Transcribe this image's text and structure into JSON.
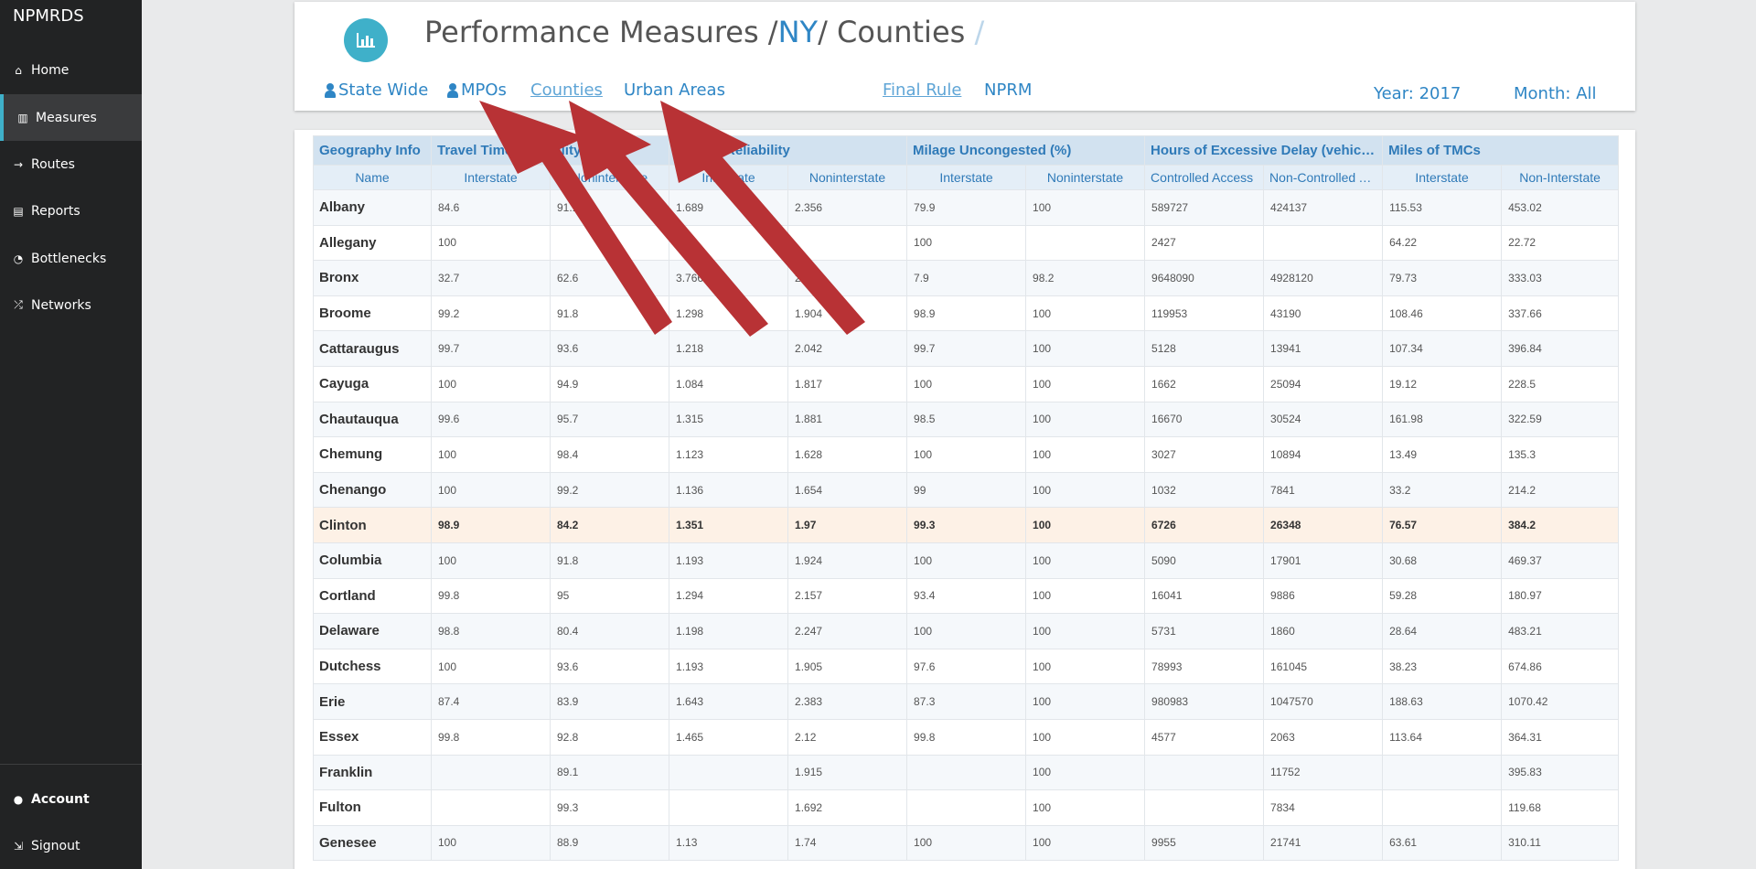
{
  "sidebar": {
    "brand": "NPMRDS",
    "items": [
      {
        "label": "Home",
        "icon": "home-icon",
        "glyph": "⌂"
      },
      {
        "label": "Measures",
        "icon": "bar-chart-icon",
        "glyph": "▥"
      },
      {
        "label": "Routes",
        "icon": "arrow-right-icon",
        "glyph": "→"
      },
      {
        "label": "Reports",
        "icon": "document-icon",
        "glyph": "▤"
      },
      {
        "label": "Bottlenecks",
        "icon": "gauge-icon",
        "glyph": "◔"
      },
      {
        "label": "Networks",
        "icon": "shuffle-icon",
        "glyph": "⤮"
      }
    ],
    "account": {
      "label": "Account",
      "icon": "user-circle-icon",
      "glyph": "●"
    },
    "signout": {
      "label": "Signout",
      "icon": "signout-icon",
      "glyph": "⇲"
    }
  },
  "header": {
    "title_prefix": "Performance Measures /",
    "title_state": "NY",
    "title_suffix": "/ Counties",
    "title_trailing": "/",
    "tabs": {
      "state_wide": "State Wide",
      "mpos": "MPOs",
      "counties": "Counties",
      "urban_areas": "Urban Areas",
      "final_rule": "Final Rule",
      "nprm": "NPRM"
    },
    "year": "Year: 2017",
    "month": "Month: All"
  },
  "colors": {
    "accent": "#3fb0c9",
    "link": "#2f86c5",
    "sidebar_bg": "#222324",
    "arrow": "#b83235",
    "highlight_row": "#fdf1e6"
  },
  "table": {
    "group_headers": [
      "Geography Info",
      "Travel Time Reliability",
      "Freight Reliability",
      "Milage Uncongested (%)",
      "Hours of Excessive Delay (vehicle hours)",
      "Miles of TMCs"
    ],
    "sub_headers": [
      "Name",
      "Interstate",
      "Noninterstate",
      "Interstate",
      "Noninterstate",
      "Interstate",
      "Noninterstate",
      "Controlled Access",
      "Non-Controlled Access",
      "Interstate",
      "Non-Interstate"
    ],
    "rows": [
      [
        "Albany",
        "84.6",
        "91.1",
        "1.689",
        "2.356",
        "79.9",
        "100",
        "589727",
        "424137",
        "115.53",
        "453.02"
      ],
      [
        "Allegany",
        "100",
        "",
        "1.09",
        "",
        "100",
        "",
        "2427",
        "",
        "64.22",
        "22.72"
      ],
      [
        "Bronx",
        "32.7",
        "62.6",
        "3.766",
        "2.93",
        "7.9",
        "98.2",
        "9648090",
        "4928120",
        "79.73",
        "333.03"
      ],
      [
        "Broome",
        "99.2",
        "91.8",
        "1.298",
        "1.904",
        "98.9",
        "100",
        "119953",
        "43190",
        "108.46",
        "337.66"
      ],
      [
        "Cattaraugus",
        "99.7",
        "93.6",
        "1.218",
        "2.042",
        "99.7",
        "100",
        "5128",
        "13941",
        "107.34",
        "396.84"
      ],
      [
        "Cayuga",
        "100",
        "94.9",
        "1.084",
        "1.817",
        "100",
        "100",
        "1662",
        "25094",
        "19.12",
        "228.5"
      ],
      [
        "Chautauqua",
        "99.6",
        "95.7",
        "1.315",
        "1.881",
        "98.5",
        "100",
        "16670",
        "30524",
        "161.98",
        "322.59"
      ],
      [
        "Chemung",
        "100",
        "98.4",
        "1.123",
        "1.628",
        "100",
        "100",
        "3027",
        "10894",
        "13.49",
        "135.3"
      ],
      [
        "Chenango",
        "100",
        "99.2",
        "1.136",
        "1.654",
        "99",
        "100",
        "1032",
        "7841",
        "33.2",
        "214.2"
      ],
      [
        "Clinton",
        "98.9",
        "84.2",
        "1.351",
        "1.97",
        "99.3",
        "100",
        "6726",
        "26348",
        "76.57",
        "384.2"
      ],
      [
        "Columbia",
        "100",
        "91.8",
        "1.193",
        "1.924",
        "100",
        "100",
        "5090",
        "17901",
        "30.68",
        "469.37"
      ],
      [
        "Cortland",
        "99.8",
        "95",
        "1.294",
        "2.157",
        "93.4",
        "100",
        "16041",
        "9886",
        "59.28",
        "180.97"
      ],
      [
        "Delaware",
        "98.8",
        "80.4",
        "1.198",
        "2.247",
        "100",
        "100",
        "5731",
        "1860",
        "28.64",
        "483.21"
      ],
      [
        "Dutchess",
        "100",
        "93.6",
        "1.193",
        "1.905",
        "97.6",
        "100",
        "78993",
        "161045",
        "38.23",
        "674.86"
      ],
      [
        "Erie",
        "87.4",
        "83.9",
        "1.643",
        "2.383",
        "87.3",
        "100",
        "980983",
        "1047570",
        "188.63",
        "1070.42"
      ],
      [
        "Essex",
        "99.8",
        "92.8",
        "1.465",
        "2.12",
        "99.8",
        "100",
        "4577",
        "2063",
        "113.64",
        "364.31"
      ],
      [
        "Franklin",
        "",
        "89.1",
        "",
        "1.915",
        "",
        "100",
        "",
        "11752",
        "",
        "395.83"
      ],
      [
        "Fulton",
        "",
        "99.3",
        "",
        "1.692",
        "",
        "100",
        "",
        "7834",
        "",
        "119.68"
      ],
      [
        "Genesee",
        "100",
        "88.9",
        "1.13",
        "1.74",
        "100",
        "100",
        "9955",
        "21741",
        "63.61",
        "310.11"
      ]
    ],
    "highlight_row_index": 9
  }
}
